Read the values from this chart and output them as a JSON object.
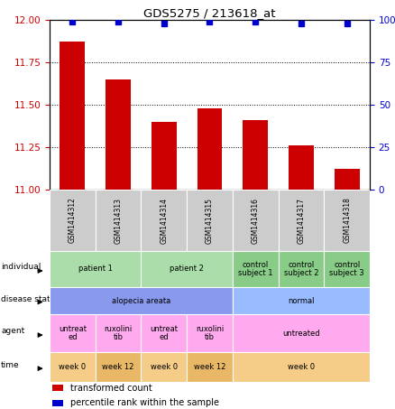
{
  "title": "GDS5275 / 213618_at",
  "samples": [
    "GSM1414312",
    "GSM1414313",
    "GSM1414314",
    "GSM1414315",
    "GSM1414316",
    "GSM1414317",
    "GSM1414318"
  ],
  "bar_values": [
    11.87,
    11.65,
    11.4,
    11.48,
    11.41,
    11.26,
    11.12
  ],
  "dot_values": [
    99,
    99,
    98,
    99,
    99,
    98,
    98
  ],
  "ylim_left": [
    11.0,
    12.0
  ],
  "ylim_right": [
    0,
    100
  ],
  "yticks_left": [
    11.0,
    11.25,
    11.5,
    11.75,
    12.0
  ],
  "yticks_right": [
    0,
    25,
    50,
    75,
    100
  ],
  "bar_color": "#cc0000",
  "dot_color": "#0000cc",
  "bar_bottom": 11.0,
  "annotation_rows": {
    "individual": {
      "cells": [
        {
          "span": [
            0,
            1
          ],
          "text": "patient 1",
          "color": "#aaddaa"
        },
        {
          "span": [
            2,
            3
          ],
          "text": "patient 2",
          "color": "#aaddaa"
        },
        {
          "span": [
            4,
            4
          ],
          "text": "control\nsubject 1",
          "color": "#88cc88"
        },
        {
          "span": [
            5,
            5
          ],
          "text": "control\nsubject 2",
          "color": "#88cc88"
        },
        {
          "span": [
            6,
            6
          ],
          "text": "control\nsubject 3",
          "color": "#88cc88"
        }
      ]
    },
    "disease state": {
      "cells": [
        {
          "span": [
            0,
            3
          ],
          "text": "alopecia areata",
          "color": "#8899ee"
        },
        {
          "span": [
            4,
            6
          ],
          "text": "normal",
          "color": "#99bbff"
        }
      ]
    },
    "agent": {
      "cells": [
        {
          "span": [
            0,
            0
          ],
          "text": "untreat\ned",
          "color": "#ffaaee"
        },
        {
          "span": [
            1,
            1
          ],
          "text": "ruxolini\ntib",
          "color": "#ffaaee"
        },
        {
          "span": [
            2,
            2
          ],
          "text": "untreat\ned",
          "color": "#ffaaee"
        },
        {
          "span": [
            3,
            3
          ],
          "text": "ruxolini\ntib",
          "color": "#ffaaee"
        },
        {
          "span": [
            4,
            6
          ],
          "text": "untreated",
          "color": "#ffaaee"
        }
      ]
    },
    "time": {
      "cells": [
        {
          "span": [
            0,
            0
          ],
          "text": "week 0",
          "color": "#f5cc88"
        },
        {
          "span": [
            1,
            1
          ],
          "text": "week 12",
          "color": "#e8b866"
        },
        {
          "span": [
            2,
            2
          ],
          "text": "week 0",
          "color": "#f5cc88"
        },
        {
          "span": [
            3,
            3
          ],
          "text": "week 12",
          "color": "#e8b866"
        },
        {
          "span": [
            4,
            6
          ],
          "text": "week 0",
          "color": "#f5cc88"
        }
      ]
    }
  },
  "row_keys": [
    "individual",
    "disease state",
    "agent",
    "time"
  ],
  "legend_items": [
    {
      "color": "#cc0000",
      "label": "transformed count"
    },
    {
      "color": "#0000cc",
      "label": "percentile rank within the sample"
    }
  ],
  "left_color": "#cc0000",
  "right_color": "#0000cc"
}
